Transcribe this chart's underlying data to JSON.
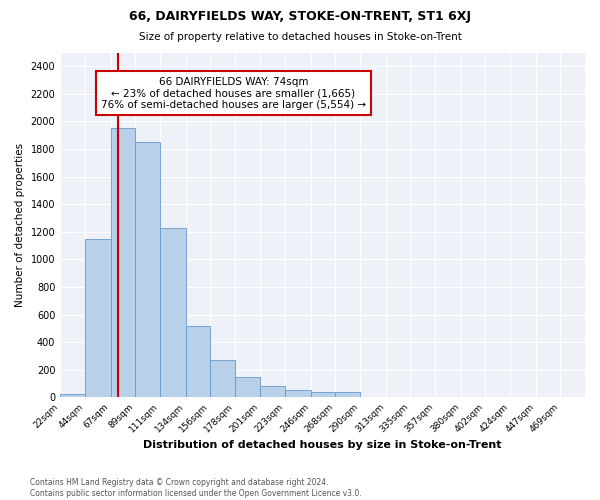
{
  "title": "66, DAIRYFIELDS WAY, STOKE-ON-TRENT, ST1 6XJ",
  "subtitle": "Size of property relative to detached houses in Stoke-on-Trent",
  "xlabel": "Distribution of detached houses by size in Stoke-on-Trent",
  "ylabel": "Number of detached properties",
  "footer_line1": "Contains HM Land Registry data © Crown copyright and database right 2024.",
  "footer_line2": "Contains public sector information licensed under the Open Government Licence v3.0.",
  "annotation_title": "66 DAIRYFIELDS WAY: 74sqm",
  "annotation_line1": "← 23% of detached houses are smaller (1,665)",
  "annotation_line2": "76% of semi-detached houses are larger (5,554) →",
  "property_size": 74,
  "bar_color": "#b8d0ea",
  "bar_edge_color": "#6699cc",
  "red_line_color": "#cc0000",
  "annotation_box_color": "#cc0000",
  "background_color": "#eef2f8",
  "categories": [
    "22sqm",
    "44sqm",
    "67sqm",
    "89sqm",
    "111sqm",
    "134sqm",
    "156sqm",
    "178sqm",
    "201sqm",
    "223sqm",
    "246sqm",
    "268sqm",
    "290sqm",
    "313sqm",
    "335sqm",
    "357sqm",
    "380sqm",
    "402sqm",
    "424sqm",
    "447sqm",
    "469sqm"
  ],
  "bin_edges": [
    22,
    44,
    67,
    89,
    111,
    134,
    156,
    178,
    201,
    223,
    246,
    268,
    290,
    313,
    335,
    357,
    380,
    402,
    424,
    447,
    469,
    491
  ],
  "values": [
    25,
    1150,
    1950,
    1850,
    1225,
    520,
    275,
    150,
    85,
    55,
    40,
    40,
    5,
    5,
    3,
    3,
    3,
    2,
    2,
    2,
    5
  ],
  "ylim": [
    0,
    2500
  ],
  "yticks": [
    0,
    200,
    400,
    600,
    800,
    1000,
    1200,
    1400,
    1600,
    1800,
    2000,
    2200,
    2400
  ]
}
